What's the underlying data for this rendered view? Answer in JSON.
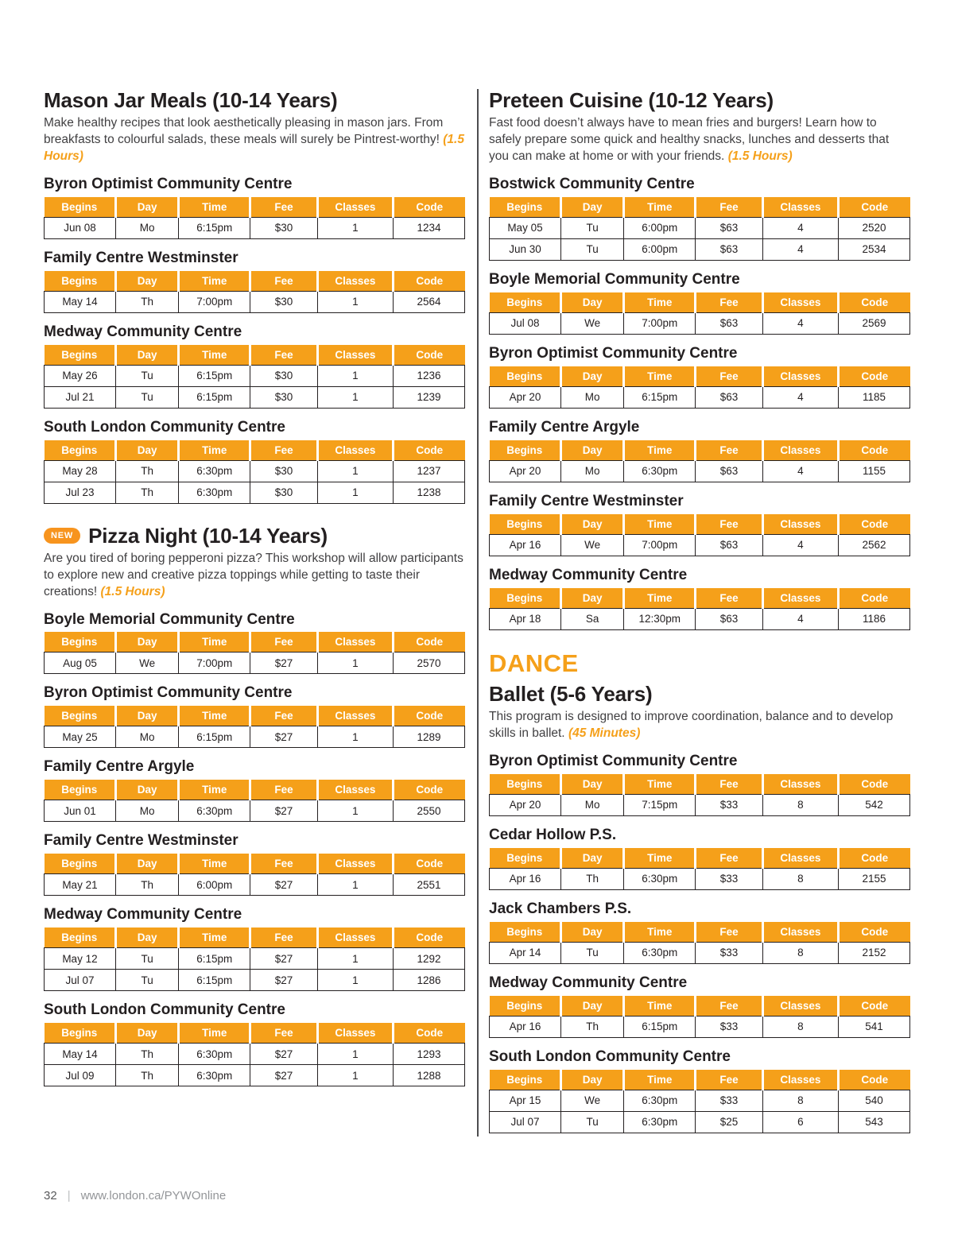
{
  "accent_color": "#f5a01a",
  "table_headers": [
    "Begins",
    "Day",
    "Time",
    "Fee",
    "Classes",
    "Code"
  ],
  "footer": {
    "page_number": "32",
    "separator": "|",
    "site_url": "www.london.ca/PYWOnline"
  },
  "columns": [
    {
      "blocks": [
        {
          "type": "program",
          "badge": "",
          "title": "Mason Jar Meals (10-14 Years)",
          "description": "Make healthy recipes that look aesthetically pleasing in mason jars. From breakfasts to colourful salads, these meals will surely be Pintrest-worthy!",
          "duration": "(1.5 Hours)",
          "venues": [
            {
              "name": "Byron Optimist Community Centre",
              "rows": [
                [
                  "Jun 08",
                  "Mo",
                  "6:15pm",
                  "$30",
                  "1",
                  "1234"
                ]
              ]
            },
            {
              "name": "Family Centre Westminster",
              "rows": [
                [
                  "May 14",
                  "Th",
                  "7:00pm",
                  "$30",
                  "1",
                  "2564"
                ]
              ]
            },
            {
              "name": "Medway Community Centre",
              "rows": [
                [
                  "May 26",
                  "Tu",
                  "6:15pm",
                  "$30",
                  "1",
                  "1236"
                ],
                [
                  "Jul 21",
                  "Tu",
                  "6:15pm",
                  "$30",
                  "1",
                  "1239"
                ]
              ]
            },
            {
              "name": "South London Community Centre",
              "rows": [
                [
                  "May 28",
                  "Th",
                  "6:30pm",
                  "$30",
                  "1",
                  "1237"
                ],
                [
                  "Jul 23",
                  "Th",
                  "6:30pm",
                  "$30",
                  "1",
                  "1238"
                ]
              ]
            }
          ]
        },
        {
          "type": "program",
          "badge": "NEW",
          "title": "Pizza Night (10-14 Years)",
          "description": "Are you tired of boring pepperoni pizza? This workshop will allow participants to explore new and creative pizza toppings while getting to taste their creations!",
          "duration": "(1.5 Hours)",
          "venues": [
            {
              "name": "Boyle Memorial Community Centre",
              "rows": [
                [
                  "Aug 05",
                  "We",
                  "7:00pm",
                  "$27",
                  "1",
                  "2570"
                ]
              ]
            },
            {
              "name": "Byron Optimist Community Centre",
              "rows": [
                [
                  "May 25",
                  "Mo",
                  "6:15pm",
                  "$27",
                  "1",
                  "1289"
                ]
              ]
            },
            {
              "name": "Family Centre Argyle",
              "rows": [
                [
                  "Jun 01",
                  "Mo",
                  "6:30pm",
                  "$27",
                  "1",
                  "2550"
                ]
              ]
            },
            {
              "name": "Family Centre Westminster",
              "rows": [
                [
                  "May 21",
                  "Th",
                  "6:00pm",
                  "$27",
                  "1",
                  "2551"
                ]
              ]
            },
            {
              "name": "Medway Community Centre",
              "rows": [
                [
                  "May 12",
                  "Tu",
                  "6:15pm",
                  "$27",
                  "1",
                  "1292"
                ],
                [
                  "Jul 07",
                  "Tu",
                  "6:15pm",
                  "$27",
                  "1",
                  "1286"
                ]
              ]
            },
            {
              "name": "South London Community Centre",
              "rows": [
                [
                  "May 14",
                  "Th",
                  "6:30pm",
                  "$27",
                  "1",
                  "1293"
                ],
                [
                  "Jul 09",
                  "Th",
                  "6:30pm",
                  "$27",
                  "1",
                  "1288"
                ]
              ]
            }
          ]
        }
      ]
    },
    {
      "blocks": [
        {
          "type": "program",
          "badge": "",
          "title": "Preteen Cuisine (10-12 Years)",
          "description": "Fast food doesn’t always have to mean fries and burgers! Learn how to safely prepare some quick and healthy snacks, lunches and desserts that you can make at home or with your friends.",
          "duration": "(1.5 Hours)",
          "venues": [
            {
              "name": "Bostwick Community Centre",
              "rows": [
                [
                  "May 05",
                  "Tu",
                  "6:00pm",
                  "$63",
                  "4",
                  "2520"
                ],
                [
                  "Jun 30",
                  "Tu",
                  "6:00pm",
                  "$63",
                  "4",
                  "2534"
                ]
              ]
            },
            {
              "name": "Boyle Memorial Community Centre",
              "rows": [
                [
                  "Jul 08",
                  "We",
                  "7:00pm",
                  "$63",
                  "4",
                  "2569"
                ]
              ]
            },
            {
              "name": "Byron Optimist Community Centre",
              "rows": [
                [
                  "Apr 20",
                  "Mo",
                  "6:15pm",
                  "$63",
                  "4",
                  "1185"
                ]
              ]
            },
            {
              "name": "Family Centre Argyle",
              "rows": [
                [
                  "Apr 20",
                  "Mo",
                  "6:30pm",
                  "$63",
                  "4",
                  "1155"
                ]
              ]
            },
            {
              "name": "Family Centre Westminster",
              "rows": [
                [
                  "Apr 16",
                  "We",
                  "7:00pm",
                  "$63",
                  "4",
                  "2562"
                ]
              ]
            },
            {
              "name": "Medway Community Centre",
              "rows": [
                [
                  "Apr 18",
                  "Sa",
                  "12:30pm",
                  "$63",
                  "4",
                  "1186"
                ]
              ]
            }
          ]
        },
        {
          "type": "category",
          "title": "DANCE"
        },
        {
          "type": "program",
          "badge": "",
          "title": "Ballet (5-6 Years)",
          "description": "This program is designed to improve coordination, balance and to develop skills in ballet.",
          "duration": "(45 Minutes)",
          "venues": [
            {
              "name": "Byron Optimist Community Centre",
              "rows": [
                [
                  "Apr 20",
                  "Mo",
                  "7:15pm",
                  "$33",
                  "8",
                  "542"
                ]
              ]
            },
            {
              "name": "Cedar Hollow P.S.",
              "rows": [
                [
                  "Apr 16",
                  "Th",
                  "6:30pm",
                  "$33",
                  "8",
                  "2155"
                ]
              ]
            },
            {
              "name": "Jack Chambers P.S.",
              "rows": [
                [
                  "Apr 14",
                  "Tu",
                  "6:30pm",
                  "$33",
                  "8",
                  "2152"
                ]
              ]
            },
            {
              "name": "Medway Community Centre",
              "rows": [
                [
                  "Apr 16",
                  "Th",
                  "6:15pm",
                  "$33",
                  "8",
                  "541"
                ]
              ]
            },
            {
              "name": "South London Community Centre",
              "rows": [
                [
                  "Apr 15",
                  "We",
                  "6:30pm",
                  "$33",
                  "8",
                  "540"
                ],
                [
                  "Jul 07",
                  "Tu",
                  "6:30pm",
                  "$25",
                  "6",
                  "543"
                ]
              ]
            }
          ]
        }
      ]
    }
  ]
}
